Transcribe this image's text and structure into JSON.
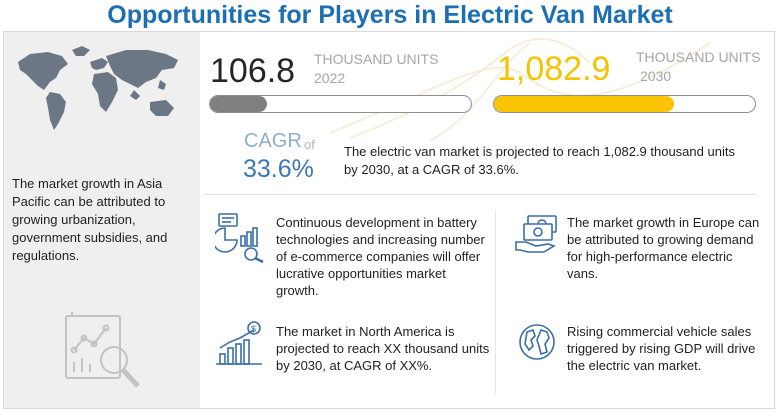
{
  "title": "Opportunities for Players in Electric Van Market",
  "left_panel": {
    "text": "The market growth in Asia Pacific can be attributed to growing urbanization, government subsidies, and regulations.",
    "icons": [
      "world-map-icon",
      "analytics-magnifier-icon"
    ]
  },
  "stats": [
    {
      "value": "106.8",
      "unit": "THOUSAND UNITS",
      "year": "2022",
      "progress": 0.22,
      "color": "#7f7f7f"
    },
    {
      "value": "1,082.9",
      "unit": "THOUSAND UNITS",
      "year": "2030",
      "progress": 0.69,
      "color": "#f9c400"
    }
  ],
  "cagr": {
    "label": "CAGR",
    "of": "of",
    "value": "33.6%",
    "description": "The electric van market is projected to reach 1,082.9 thousand units by 2030, at a CAGR of 33.6%."
  },
  "insights": [
    {
      "icon": "battery-chart-icon",
      "text": "Continuous development in battery technologies and increasing number of e-commerce companies will offer lucrative opportunities market growth."
    },
    {
      "icon": "money-hand-icon",
      "text": "The market growth in Europe can be attributed to growing demand for high-performance electric vans."
    },
    {
      "icon": "growth-chart-icon",
      "text": "The market in North America is projected to reach XX thousand units by 2030, at CAGR of  XX%."
    },
    {
      "icon": "globe-icon",
      "text": "Rising commercial vehicle sales triggered by rising GDP will drive the electric van market."
    }
  ],
  "colors": {
    "title": "#1c6eb5",
    "accent_yellow": "#f9c400",
    "cagr_blue": "#3a78b6",
    "panel_gray": "#efefef"
  }
}
